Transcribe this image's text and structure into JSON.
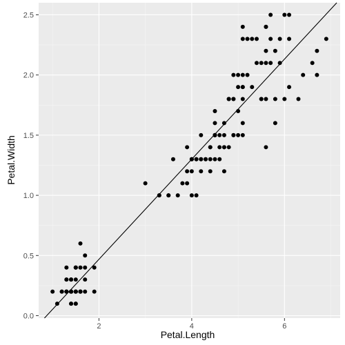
{
  "chart_data": {
    "type": "scatter",
    "xlabel": "Petal.Length",
    "ylabel": "Petal.Width",
    "xlim": [
      0.7,
      7.2
    ],
    "ylim": [
      -0.02,
      2.6
    ],
    "x_ticks": [
      2,
      4,
      6
    ],
    "x_tick_labels": [
      "2",
      "4",
      "6"
    ],
    "y_ticks": [
      0,
      0.5,
      1,
      1.5,
      2,
      2.5
    ],
    "y_tick_labels": [
      "0.0",
      "0.5",
      "1.0",
      "1.5",
      "2.0",
      "2.5"
    ],
    "grid": true,
    "reference_line": {
      "slope": 0.4158,
      "intercept": -0.3631
    },
    "points": [
      [
        1.4,
        0.2
      ],
      [
        1.4,
        0.2
      ],
      [
        1.3,
        0.2
      ],
      [
        1.5,
        0.2
      ],
      [
        1.4,
        0.2
      ],
      [
        1.7,
        0.4
      ],
      [
        1.4,
        0.3
      ],
      [
        1.5,
        0.2
      ],
      [
        1.4,
        0.2
      ],
      [
        1.5,
        0.1
      ],
      [
        1.5,
        0.2
      ],
      [
        1.6,
        0.2
      ],
      [
        1.4,
        0.1
      ],
      [
        1.1,
        0.1
      ],
      [
        1.2,
        0.2
      ],
      [
        1.5,
        0.4
      ],
      [
        1.3,
        0.4
      ],
      [
        1.4,
        0.3
      ],
      [
        1.7,
        0.3
      ],
      [
        1.5,
        0.3
      ],
      [
        1.7,
        0.2
      ],
      [
        1.5,
        0.4
      ],
      [
        1.0,
        0.2
      ],
      [
        1.7,
        0.5
      ],
      [
        1.9,
        0.2
      ],
      [
        1.6,
        0.2
      ],
      [
        1.6,
        0.4
      ],
      [
        1.5,
        0.2
      ],
      [
        1.4,
        0.2
      ],
      [
        1.6,
        0.2
      ],
      [
        1.6,
        0.2
      ],
      [
        1.5,
        0.4
      ],
      [
        1.5,
        0.1
      ],
      [
        1.4,
        0.2
      ],
      [
        1.5,
        0.2
      ],
      [
        1.2,
        0.2
      ],
      [
        1.3,
        0.2
      ],
      [
        1.4,
        0.1
      ],
      [
        1.3,
        0.2
      ],
      [
        1.5,
        0.2
      ],
      [
        1.3,
        0.3
      ],
      [
        1.3,
        0.3
      ],
      [
        1.3,
        0.2
      ],
      [
        1.6,
        0.6
      ],
      [
        1.9,
        0.4
      ],
      [
        1.4,
        0.3
      ],
      [
        1.6,
        0.2
      ],
      [
        1.4,
        0.2
      ],
      [
        1.5,
        0.2
      ],
      [
        1.4,
        0.2
      ],
      [
        4.7,
        1.4
      ],
      [
        4.5,
        1.5
      ],
      [
        4.9,
        1.5
      ],
      [
        4.0,
        1.3
      ],
      [
        4.6,
        1.5
      ],
      [
        4.5,
        1.3
      ],
      [
        4.7,
        1.6
      ],
      [
        3.3,
        1.0
      ],
      [
        4.6,
        1.3
      ],
      [
        3.9,
        1.4
      ],
      [
        3.5,
        1.0
      ],
      [
        4.2,
        1.5
      ],
      [
        4.0,
        1.0
      ],
      [
        4.7,
        1.4
      ],
      [
        3.6,
        1.3
      ],
      [
        4.4,
        1.4
      ],
      [
        4.5,
        1.5
      ],
      [
        4.1,
        1.0
      ],
      [
        4.5,
        1.5
      ],
      [
        3.9,
        1.1
      ],
      [
        4.8,
        1.8
      ],
      [
        4.0,
        1.3
      ],
      [
        4.9,
        1.5
      ],
      [
        4.7,
        1.2
      ],
      [
        4.3,
        1.3
      ],
      [
        4.4,
        1.4
      ],
      [
        4.8,
        1.4
      ],
      [
        5.0,
        1.7
      ],
      [
        4.5,
        1.5
      ],
      [
        3.5,
        1.0
      ],
      [
        3.8,
        1.1
      ],
      [
        3.7,
        1.0
      ],
      [
        3.9,
        1.2
      ],
      [
        5.1,
        1.6
      ],
      [
        4.5,
        1.5
      ],
      [
        4.5,
        1.6
      ],
      [
        4.7,
        1.5
      ],
      [
        4.4,
        1.3
      ],
      [
        4.1,
        1.3
      ],
      [
        4.0,
        1.3
      ],
      [
        4.4,
        1.2
      ],
      [
        4.6,
        1.4
      ],
      [
        4.0,
        1.2
      ],
      [
        3.3,
        1.0
      ],
      [
        4.2,
        1.3
      ],
      [
        4.2,
        1.2
      ],
      [
        4.2,
        1.3
      ],
      [
        4.3,
        1.3
      ],
      [
        3.0,
        1.1
      ],
      [
        4.1,
        1.3
      ],
      [
        6.0,
        2.5
      ],
      [
        5.1,
        1.9
      ],
      [
        5.9,
        2.1
      ],
      [
        5.6,
        1.8
      ],
      [
        5.8,
        2.2
      ],
      [
        6.6,
        2.1
      ],
      [
        4.5,
        1.7
      ],
      [
        6.3,
        1.8
      ],
      [
        5.8,
        1.8
      ],
      [
        6.1,
        2.5
      ],
      [
        5.1,
        2.0
      ],
      [
        5.3,
        1.9
      ],
      [
        5.5,
        2.1
      ],
      [
        5.0,
        2.0
      ],
      [
        5.1,
        2.4
      ],
      [
        5.3,
        2.3
      ],
      [
        5.5,
        1.8
      ],
      [
        6.7,
        2.2
      ],
      [
        6.9,
        2.3
      ],
      [
        5.0,
        1.5
      ],
      [
        5.7,
        2.3
      ],
      [
        4.9,
        2.0
      ],
      [
        6.7,
        2.0
      ],
      [
        4.9,
        1.8
      ],
      [
        5.7,
        2.1
      ],
      [
        6.0,
        1.8
      ],
      [
        4.8,
        1.8
      ],
      [
        4.9,
        1.8
      ],
      [
        5.6,
        2.1
      ],
      [
        5.8,
        1.6
      ],
      [
        6.1,
        1.9
      ],
      [
        6.4,
        2.0
      ],
      [
        5.6,
        2.2
      ],
      [
        5.1,
        1.5
      ],
      [
        5.6,
        1.4
      ],
      [
        6.1,
        2.3
      ],
      [
        5.6,
        2.4
      ],
      [
        5.5,
        1.8
      ],
      [
        4.8,
        1.8
      ],
      [
        5.4,
        2.1
      ],
      [
        5.6,
        2.4
      ],
      [
        5.1,
        2.3
      ],
      [
        5.1,
        1.9
      ],
      [
        5.9,
        2.3
      ],
      [
        5.7,
        2.5
      ],
      [
        5.2,
        2.3
      ],
      [
        5.0,
        1.9
      ],
      [
        5.2,
        2.0
      ],
      [
        5.4,
        2.3
      ],
      [
        5.1,
        1.8
      ]
    ]
  }
}
